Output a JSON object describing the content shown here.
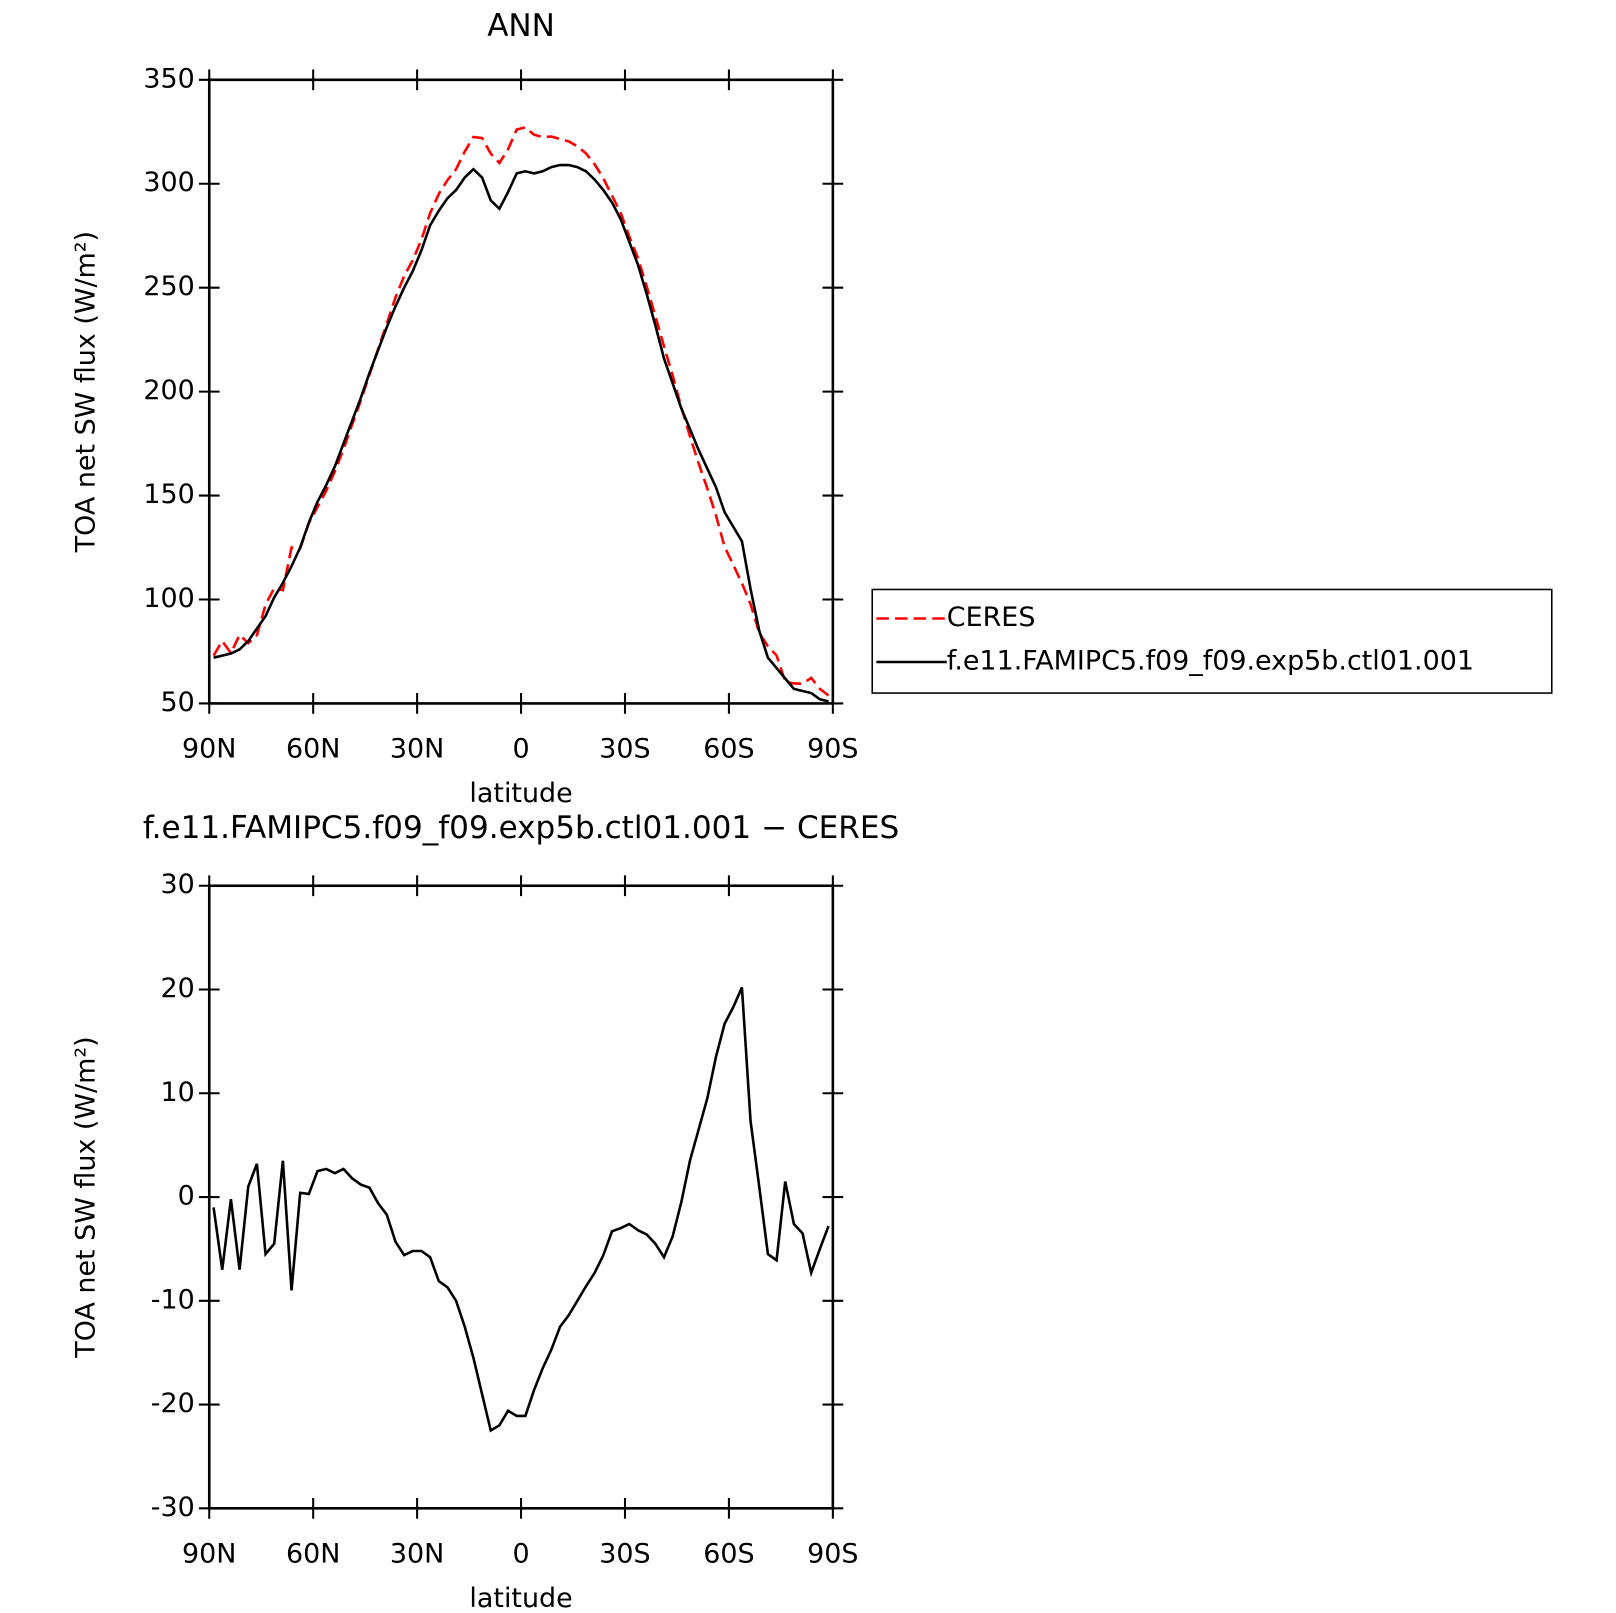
{
  "chart_data": [
    {
      "type": "line",
      "title": "ANN",
      "x_label": "latitude",
      "y_label": "TOA net SW flux (W/m²)",
      "x": [
        88.75,
        86.25,
        83.75,
        81.25,
        78.75,
        76.25,
        73.75,
        71.25,
        68.75,
        66.25,
        63.75,
        61.25,
        58.75,
        56.25,
        53.75,
        51.25,
        48.75,
        46.25,
        43.75,
        41.25,
        38.75,
        36.25,
        33.75,
        31.25,
        28.75,
        26.25,
        23.75,
        21.25,
        18.75,
        16.25,
        13.75,
        11.25,
        8.75,
        6.25,
        3.75,
        1.25,
        -1.25,
        -3.75,
        -6.25,
        -8.75,
        -11.25,
        -13.75,
        -16.25,
        -18.75,
        -21.25,
        -23.75,
        -26.25,
        -28.75,
        -31.25,
        -33.75,
        -36.25,
        -38.75,
        -41.25,
        -43.75,
        -46.25,
        -48.75,
        -51.25,
        -53.75,
        -56.25,
        -58.75,
        -61.25,
        -63.75,
        -66.25,
        -68.75,
        -71.25,
        -73.75,
        -76.25,
        -78.75,
        -81.25,
        -83.75,
        -86.25,
        -88.75
      ],
      "series": [
        {
          "name": "CERES",
          "color": "#ff0000",
          "dash": true,
          "values": [
            73,
            80,
            74.2,
            83,
            79,
            82.8,
            97.5,
            105.5,
            104.5,
            125,
            124.6,
            136.7,
            144.5,
            152.3,
            161.7,
            172.3,
            184.2,
            195.8,
            208.1,
            220.6,
            232.7,
            245.3,
            255.6,
            263.2,
            273.2,
            285.8,
            295.1,
            301.7,
            307,
            315.5,
            322.5,
            322,
            314.5,
            310,
            316.6,
            326.1,
            327.1,
            323.6,
            322.5,
            322.7,
            321.5,
            320.4,
            318,
            314.6,
            309.3,
            302.6,
            294.3,
            286,
            274.6,
            264.2,
            250.6,
            236.5,
            221.8,
            207.8,
            192.5,
            178.5,
            165.5,
            153.5,
            140.5,
            125.3,
            116.7,
            107.8,
            97.7,
            84,
            77.5,
            73.1,
            60.5,
            59.6,
            59.5,
            62.3,
            57,
            53.8
          ]
        },
        {
          "name": "f.e11.FAMIPC5.f09_f09.exp5b.ctl01.001",
          "color": "#000000",
          "dash": false,
          "values": [
            72,
            73,
            74,
            76,
            80,
            86,
            92,
            101,
            108,
            116,
            125,
            137,
            147,
            155,
            164,
            175,
            186,
            197,
            209,
            220,
            231,
            241,
            250,
            258,
            268,
            280,
            287,
            293,
            297,
            303,
            307,
            303,
            292,
            288,
            296,
            305,
            306,
            305,
            306,
            308,
            309,
            309,
            308,
            306,
            302,
            297,
            291,
            283,
            272,
            261,
            247,
            232,
            216,
            204,
            192,
            182,
            172,
            163,
            154,
            142,
            135,
            128,
            105,
            85,
            72,
            67,
            62,
            57,
            56,
            55,
            52,
            51
          ]
        }
      ],
      "xlim": [
        90,
        -90
      ],
      "xticks": [
        {
          "value": 90,
          "label": "90N"
        },
        {
          "value": 60,
          "label": "60N"
        },
        {
          "value": 30,
          "label": "30N"
        },
        0,
        {
          "value": -30,
          "label": "30S"
        },
        {
          "value": -60,
          "label": "60S"
        },
        {
          "value": -90,
          "label": "90S"
        }
      ],
      "ylim": [
        50,
        350
      ],
      "yticks": [
        50,
        100,
        150,
        200,
        250,
        300,
        350
      ],
      "legend": "right"
    },
    {
      "type": "line",
      "title": "f.e11.FAMIPC5.f09_f09.exp5b.ctl01.001 − CERES",
      "x_label": "latitude",
      "y_label": "TOA net SW flux (W/m²)",
      "x": [
        88.75,
        86.25,
        83.75,
        81.25,
        78.75,
        76.25,
        73.75,
        71.25,
        68.75,
        66.25,
        63.75,
        61.25,
        58.75,
        56.25,
        53.75,
        51.25,
        48.75,
        46.25,
        43.75,
        41.25,
        38.75,
        36.25,
        33.75,
        31.25,
        28.75,
        26.25,
        23.75,
        21.25,
        18.75,
        16.25,
        13.75,
        11.25,
        8.75,
        6.25,
        3.75,
        1.25,
        -1.25,
        -3.75,
        -6.25,
        -8.75,
        -11.25,
        -13.75,
        -16.25,
        -18.75,
        -21.25,
        -23.75,
        -26.25,
        -28.75,
        -31.25,
        -33.75,
        -36.25,
        -38.75,
        -41.25,
        -43.75,
        -46.25,
        -48.75,
        -51.25,
        -53.75,
        -56.25,
        -58.75,
        -61.25,
        -63.75,
        -66.25,
        -68.75,
        -71.25,
        -73.75,
        -76.25,
        -78.75,
        -81.25,
        -83.75,
        -86.25,
        -88.75
      ],
      "values": [
        -1,
        -7,
        -0.2,
        -7,
        1,
        3.2,
        -5.5,
        -4.5,
        3.5,
        -9,
        0.4,
        0.3,
        2.5,
        2.7,
        2.3,
        2.7,
        1.8,
        1.2,
        0.9,
        -0.6,
        -1.7,
        -4.3,
        -5.6,
        -5.2,
        -5.2,
        -5.8,
        -8.1,
        -8.7,
        -10,
        -12.5,
        -15.5,
        -19,
        -22.5,
        -22,
        -20.6,
        -21.1,
        -21.1,
        -18.6,
        -16.5,
        -14.7,
        -12.5,
        -11.4,
        -10,
        -8.6,
        -7.3,
        -5.6,
        -3.3,
        -3,
        -2.6,
        -3.2,
        -3.6,
        -4.5,
        -5.8,
        -3.8,
        -0.5,
        3.5,
        6.5,
        9.5,
        13.5,
        16.7,
        18.3,
        20.2,
        7.3,
        1,
        -5.5,
        -6.1,
        1.5,
        -2.6,
        -3.5,
        -7.3,
        -5,
        -2.8
      ],
      "color": "#000000",
      "xlim": [
        90,
        -90
      ],
      "xticks": [
        {
          "value": 90,
          "label": "90N"
        },
        {
          "value": 60,
          "label": "60N"
        },
        {
          "value": 30,
          "label": "30N"
        },
        0,
        {
          "value": -30,
          "label": "30S"
        },
        {
          "value": -60,
          "label": "60S"
        },
        {
          "value": -90,
          "label": "90S"
        }
      ],
      "ylim": [
        -30,
        30
      ],
      "yticks": [
        -30,
        -20,
        -10,
        0,
        10,
        20,
        30
      ]
    }
  ]
}
